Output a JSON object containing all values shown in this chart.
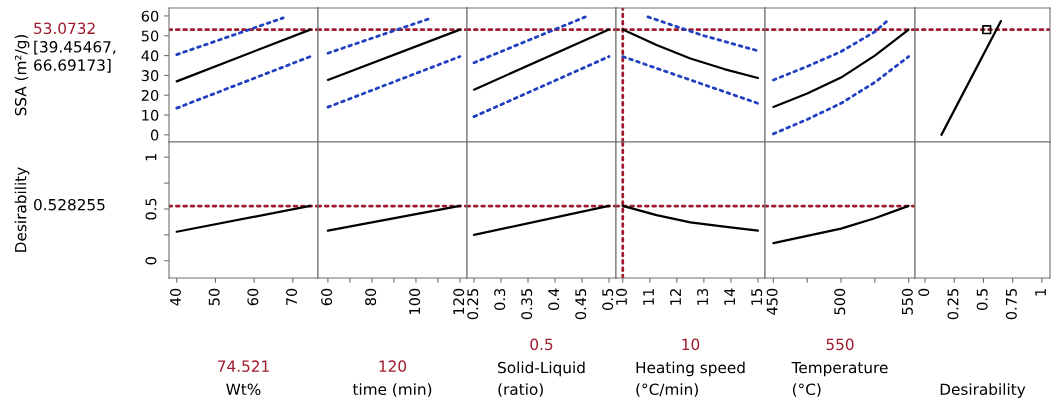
{
  "chart_data": [
    {
      "type": "line",
      "xlim": [
        38,
        76.5
      ],
      "ylim": [
        -3.6,
        64
      ],
      "yticks": [
        0,
        10,
        20,
        30,
        40,
        50,
        60
      ],
      "ylabel": "SSA (m²/g)",
      "tick_labels": "y",
      "annotations": [
        "[39.45467,\n66.69173]"
      ],
      "ref_lines": [
        {
          "axis": "y",
          "value": 53.0732,
          "label": "53.0732",
          "color": "#a01c2c",
          "line_style": "dotted"
        }
      ],
      "series": [
        {
          "x": [
            40,
            74.521
          ],
          "values": [
            27,
            53.1
          ],
          "color": "#000000",
          "line_style": "solid"
        },
        {
          "x": [
            40,
            67.5
          ],
          "values": [
            40.5,
            59
          ],
          "color": "#2040c0",
          "line_style": "dotted"
        },
        {
          "x": [
            40,
            74.521
          ],
          "values": [
            13.5,
            39.5
          ],
          "color": "#2040c0",
          "line_style": "dotted"
        }
      ]
    },
    {
      "type": "line",
      "xlim": [
        55.5,
        123.2
      ],
      "ylim": [
        -3.6,
        64
      ],
      "tick_labels": false,
      "ref_lines": [
        {
          "axis": "y",
          "value": 53.0732,
          "color": "#a01c2c",
          "line_style": "dotted"
        }
      ],
      "series": [
        {
          "x": [
            60,
            120
          ],
          "values": [
            27.7,
            53.1
          ],
          "color": "#000000",
          "line_style": "solid"
        },
        {
          "x": [
            60,
            106.8
          ],
          "values": [
            41.2,
            58.9
          ],
          "color": "#2040c0",
          "line_style": "dotted"
        },
        {
          "x": [
            60,
            120
          ],
          "values": [
            14,
            39.5
          ],
          "color": "#2040c0",
          "line_style": "dotted"
        }
      ]
    },
    {
      "type": "line",
      "xlim": [
        0.237,
        0.513
      ],
      "ylim": [
        -3.6,
        64
      ],
      "tick_labels": false,
      "ref_lines": [
        {
          "axis": "y",
          "value": 53.0732,
          "color": "#a01c2c",
          "line_style": "dotted"
        }
      ],
      "series": [
        {
          "x": [
            0.25,
            0.5
          ],
          "values": [
            22.8,
            53.1
          ],
          "color": "#000000",
          "line_style": "solid"
        },
        {
          "x": [
            0.25,
            0.456
          ],
          "values": [
            36.4,
            59.5
          ],
          "color": "#2040c0",
          "line_style": "dotted"
        },
        {
          "x": [
            0.25,
            0.5
          ],
          "values": [
            9.2,
            39.5
          ],
          "color": "#2040c0",
          "line_style": "dotted"
        }
      ]
    },
    {
      "type": "line",
      "xlim": [
        9.75,
        15.26
      ],
      "ylim": [
        -3.6,
        64
      ],
      "tick_labels": false,
      "ref_lines": [
        {
          "axis": "y",
          "value": 53.0732,
          "color": "#a01c2c",
          "line_style": "dotted"
        },
        {
          "axis": "x",
          "value": 10,
          "color": "#a01c2c",
          "line_style": "dotted"
        }
      ],
      "series": [
        {
          "x": [
            10,
            11.25,
            12.5,
            13.75,
            15
          ],
          "values": [
            53.1,
            45.3,
            38.5,
            33.2,
            28.7
          ],
          "color": "#000000",
          "line_style": "solid"
        },
        {
          "x": [
            10.93,
            13,
            15
          ],
          "values": [
            59.5,
            50,
            42.4
          ],
          "color": "#2040c0",
          "line_style": "dotted"
        },
        {
          "x": [
            10,
            12.5,
            15
          ],
          "values": [
            39.5,
            27.7,
            15.9
          ],
          "color": "#2040c0",
          "line_style": "dotted"
        }
      ]
    },
    {
      "type": "line",
      "xlim": [
        443.8,
        554.7
      ],
      "ylim": [
        -3.6,
        64
      ],
      "tick_labels": false,
      "ref_lines": [
        {
          "axis": "y",
          "value": 53.0732,
          "color": "#a01c2c",
          "line_style": "dotted"
        }
      ],
      "series": [
        {
          "x": [
            450,
            475,
            500,
            525,
            550
          ],
          "values": [
            14.1,
            20.9,
            28.9,
            40,
            53.1
          ],
          "color": "#000000",
          "line_style": "solid"
        },
        {
          "x": [
            450,
            475,
            500,
            525,
            535.4
          ],
          "values": [
            27.7,
            34.5,
            42,
            52,
            58.2
          ],
          "color": "#2040c0",
          "line_style": "dotted"
        },
        {
          "x": [
            450,
            475,
            500,
            525,
            550
          ],
          "values": [
            0.5,
            7.8,
            15.9,
            26.5,
            39.5
          ],
          "color": "#2040c0",
          "line_style": "dotted"
        }
      ]
    },
    {
      "type": "line",
      "xlim": [
        -0.086,
        1.07
      ],
      "ylim": [
        -3.6,
        64
      ],
      "tick_labels": false,
      "ref_lines": [
        {
          "axis": "y",
          "value": 53.0732,
          "color": "#a01c2c",
          "line_style": "dotted"
        }
      ],
      "series": [
        {
          "x": [
            0.14,
            0.65
          ],
          "values": [
            0,
            57.4
          ],
          "color": "#000000",
          "line_style": "solid"
        },
        {
          "type": "scatter",
          "x": [
            0.528255
          ],
          "values": [
            53.0732
          ],
          "color": "#000000",
          "marker": "square"
        }
      ]
    },
    {
      "type": "line",
      "xlim": [
        38,
        76.5
      ],
      "ylim": [
        -0.167,
        1.147
      ],
      "yticks": [
        0,
        {
          "value": 0.25,
          "label": null
        },
        0.5,
        {
          "value": 0.75,
          "label": null
        },
        1
      ],
      "xticks": [
        40,
        50,
        60,
        70
      ],
      "ylabel": "Desirability",
      "xlabel": "Wt%",
      "annotations": [
        "0.528255",
        "74.521"
      ],
      "ref_lines": [
        {
          "axis": "y",
          "value": 0.528255,
          "color": "#a01c2c",
          "line_style": "dotted"
        }
      ],
      "series": [
        {
          "x": [
            40,
            74.521
          ],
          "values": [
            0.28,
            0.53
          ],
          "color": "#000000",
          "line_style": "solid"
        }
      ]
    },
    {
      "type": "line",
      "xlim": [
        55.5,
        123.2
      ],
      "ylim": [
        -0.167,
        1.147
      ],
      "xticks": [
        60,
        {
          "value": 70,
          "label": null
        },
        80,
        {
          "value": 90,
          "label": null
        },
        100,
        {
          "value": 110,
          "label": null
        },
        120
      ],
      "xlabel": "time (min)",
      "tick_labels": "x",
      "annotations": [
        "120"
      ],
      "ref_lines": [
        {
          "axis": "y",
          "value": 0.528255,
          "color": "#a01c2c",
          "line_style": "dotted"
        }
      ],
      "series": [
        {
          "x": [
            60,
            120
          ],
          "values": [
            0.29,
            0.53
          ],
          "color": "#000000",
          "line_style": "solid"
        }
      ]
    },
    {
      "type": "line",
      "xlim": [
        0.237,
        0.513
      ],
      "ylim": [
        -0.167,
        1.147
      ],
      "xticks": [
        0.25,
        0.3,
        0.35,
        0.4,
        0.45,
        0.5
      ],
      "xlabel": "Solid-Liquid\n(ratio)",
      "tick_labels": "x",
      "annotations": [
        "0.5"
      ],
      "ref_lines": [
        {
          "axis": "y",
          "value": 0.528255,
          "color": "#a01c2c",
          "line_style": "dotted"
        }
      ],
      "series": [
        {
          "x": [
            0.25,
            0.5
          ],
          "values": [
            0.25,
            0.53
          ],
          "color": "#000000",
          "line_style": "solid"
        }
      ]
    },
    {
      "type": "line",
      "xlim": [
        9.75,
        15.26
      ],
      "ylim": [
        -0.167,
        1.147
      ],
      "xticks": [
        10,
        11,
        12,
        13,
        14,
        15
      ],
      "xlabel": "Heating speed\n(°C/min)",
      "tick_labels": "x",
      "annotations": [
        "10"
      ],
      "ref_lines": [
        {
          "axis": "y",
          "value": 0.528255,
          "color": "#a01c2c",
          "line_style": "dotted"
        },
        {
          "axis": "x",
          "value": 10,
          "color": "#a01c2c",
          "line_style": "dotted"
        }
      ],
      "series": [
        {
          "x": [
            10,
            11.25,
            12.5,
            13.75,
            15
          ],
          "values": [
            0.53,
            0.44,
            0.37,
            0.33,
            0.29
          ],
          "color": "#000000",
          "line_style": "solid"
        }
      ]
    },
    {
      "type": "line",
      "xlim": [
        443.8,
        554.7
      ],
      "ylim": [
        -0.167,
        1.147
      ],
      "xticks": [
        450,
        {
          "value": 475,
          "label": null
        },
        500,
        {
          "value": 525,
          "label": null
        },
        550
      ],
      "xlabel": "Temperature\n(°C)",
      "tick_labels": "x",
      "annotations": [
        "550"
      ],
      "ref_lines": [
        {
          "axis": "y",
          "value": 0.528255,
          "color": "#a01c2c",
          "line_style": "dotted"
        }
      ],
      "series": [
        {
          "x": [
            450,
            475,
            500,
            525,
            550
          ],
          "values": [
            0.17,
            0.24,
            0.31,
            0.41,
            0.53
          ],
          "color": "#000000",
          "line_style": "solid"
        }
      ]
    },
    {
      "type": "line",
      "xlim": [
        -0.086,
        1.07
      ],
      "ylim": [
        -0.167,
        1.147
      ],
      "xticks": [
        0,
        0.25,
        0.5,
        0.75,
        1
      ],
      "xlabel": "Desirability",
      "tick_labels": "x"
    }
  ]
}
